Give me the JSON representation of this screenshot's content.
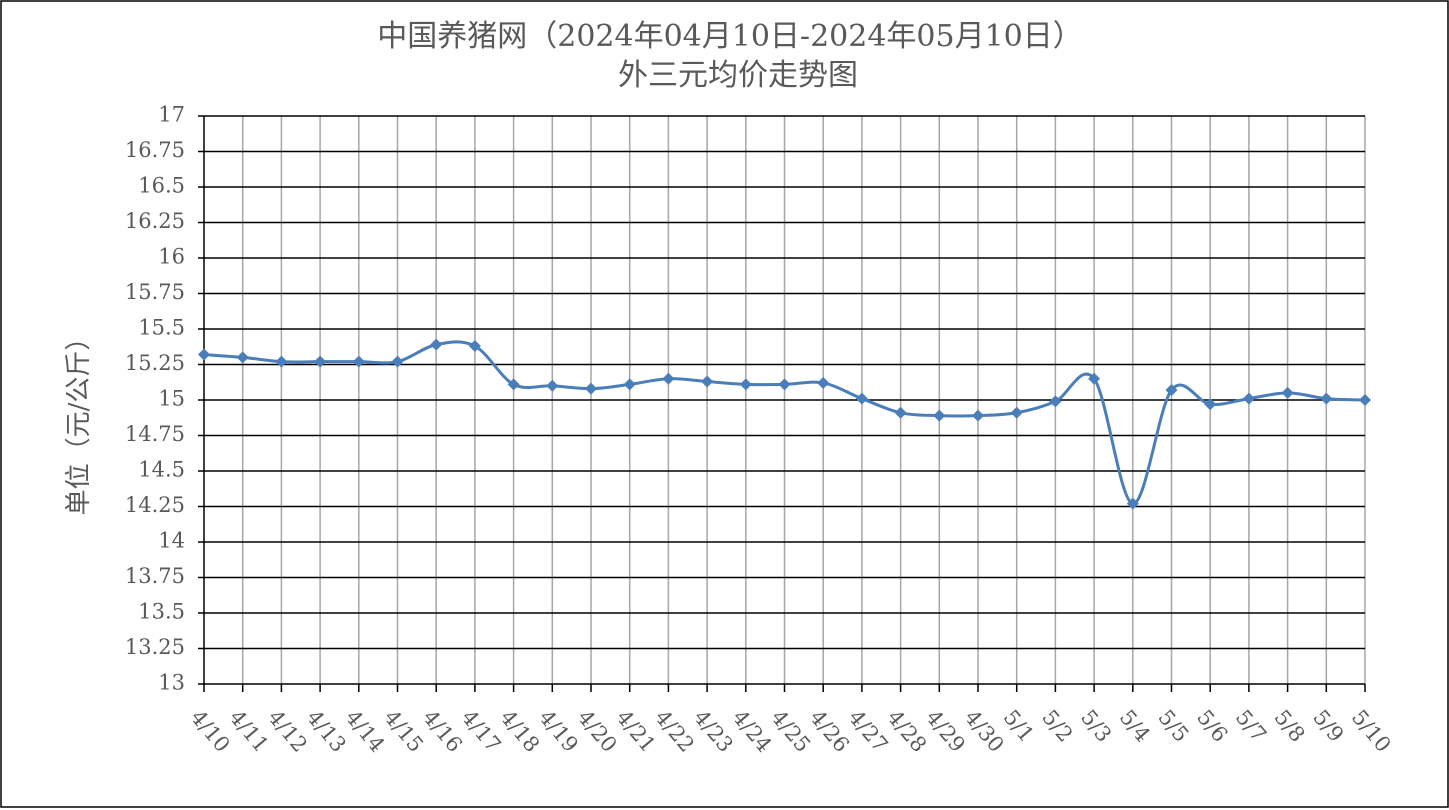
{
  "chart_data": {
    "type": "line",
    "title": "中国养猪网（2024年04月10日-2024年05月10日）",
    "subtitle": "外三元均价走势图",
    "y_label": "单位（元/公斤）",
    "categories": [
      "4/10",
      "4/11",
      "4/12",
      "4/13",
      "4/14",
      "4/15",
      "4/16",
      "4/17",
      "4/18",
      "4/19",
      "4/20",
      "4/21",
      "4/22",
      "4/23",
      "4/24",
      "4/25",
      "4/26",
      "4/27",
      "4/28",
      "4/29",
      "4/30",
      "5/1",
      "5/2",
      "5/3",
      "5/4",
      "5/5",
      "5/6",
      "5/7",
      "5/8",
      "5/9",
      "5/10"
    ],
    "series": [
      {
        "color": "#4a7ebb",
        "values": [
          15.32,
          15.3,
          15.27,
          15.27,
          15.27,
          15.27,
          15.39,
          15.38,
          15.11,
          15.1,
          15.08,
          15.11,
          15.15,
          15.13,
          15.11,
          15.11,
          15.12,
          15.01,
          14.91,
          14.89,
          14.89,
          14.91,
          14.99,
          15.15,
          14.27,
          15.07,
          14.97,
          15.01,
          15.05,
          15.01,
          15.0
        ]
      }
    ],
    "ylim": [
      13,
      17
    ],
    "yticks": [
      13,
      13.25,
      13.5,
      13.75,
      14,
      14.25,
      14.5,
      14.75,
      15,
      15.25,
      15.5,
      15.75,
      16,
      16.25,
      16.5,
      16.75,
      17
    ],
    "grid": true
  }
}
